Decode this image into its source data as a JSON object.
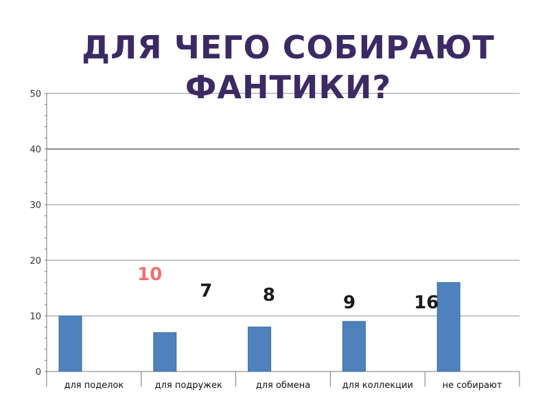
{
  "title": {
    "line1": "ДЛЯ ЧЕГО СОБИРАЮТ",
    "line2": "ФАНТИКИ?"
  },
  "colors": {
    "bar": "#4f81bd",
    "title": "#3b2a63",
    "highlight_label": "#f07070",
    "label": "#1a1a1a",
    "grid": "#8c8c8c"
  },
  "chart_data": {
    "type": "bar",
    "categories": [
      "для поделок",
      "для подружек",
      "для обмена",
      "для коллекции",
      "не собирают"
    ],
    "values": [
      10,
      7,
      8,
      9,
      16
    ],
    "data_labels": [
      "10",
      "7",
      "8",
      "9",
      "16"
    ],
    "ylim": [
      0,
      50
    ],
    "yticks": [
      0,
      10,
      20,
      30,
      40,
      50
    ],
    "grid": true,
    "legend": "none",
    "xlabel": "",
    "ylabel": ""
  }
}
